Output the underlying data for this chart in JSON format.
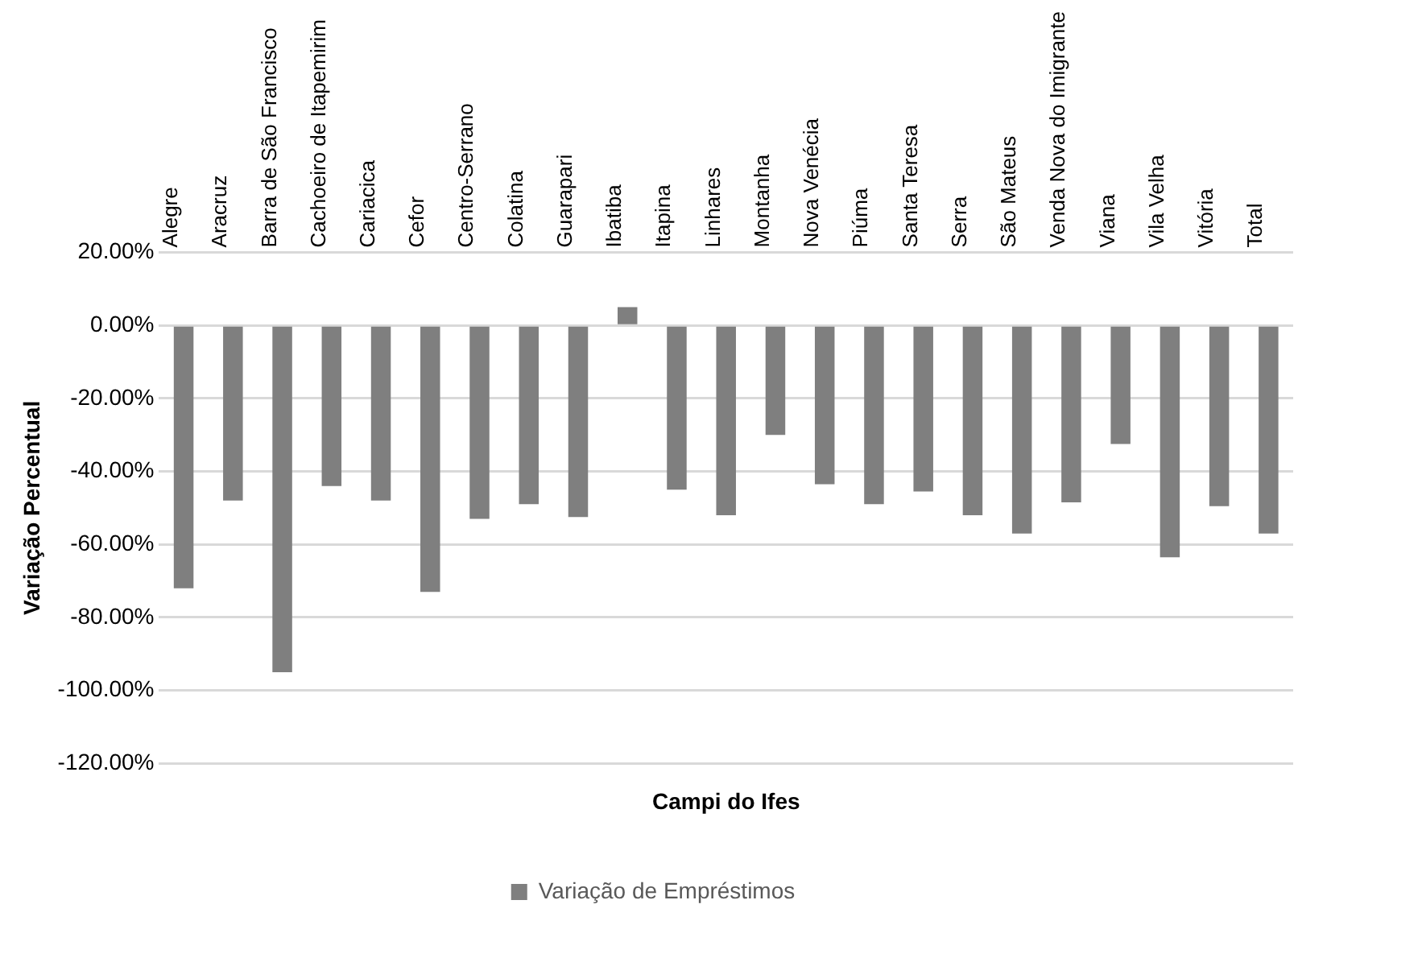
{
  "chart_data": {
    "type": "bar",
    "categories": [
      "Alegre",
      "Aracruz",
      "Barra de São Francisco",
      "Cachoeiro de Itapemirim",
      "Cariacica",
      "Cefor",
      "Centro-Serrano",
      "Colatina",
      "Guarapari",
      "Ibatiba",
      "Itapina",
      "Linhares",
      "Montanha",
      "Nova Venécia",
      "Piúma",
      "Santa Teresa",
      "Serra",
      "São Mateus",
      "Venda Nova do Imigrante",
      "Viana",
      "Vila Velha",
      "Vitória",
      "Total"
    ],
    "series": [
      {
        "name": "Variação de Empréstimos",
        "color": "#7f7f7f",
        "values": [
          -72,
          -48,
          -95,
          -44,
          -48,
          -73,
          -53,
          -49,
          -52.5,
          5,
          -45,
          -52,
          -30,
          -43.5,
          -49,
          -45.5,
          -52,
          -57,
          -48.5,
          -32.5,
          -63.5,
          -49.5,
          -57
        ]
      }
    ],
    "xlabel": "Campi do Ifes",
    "ylabel": "Variação Percentual",
    "ylim": [
      -120,
      20
    ],
    "yticks": [
      {
        "value": -120,
        "label": "-120.00%"
      },
      {
        "value": -100,
        "label": "-100.00%"
      },
      {
        "value": -80,
        "label": "-80.00%"
      },
      {
        "value": -60,
        "label": "-60.00%"
      },
      {
        "value": -40,
        "label": "-40.00%"
      },
      {
        "value": -20,
        "label": "-20.00%"
      },
      {
        "value": 0,
        "label": "0.00%"
      },
      {
        "value": 20,
        "label": "20.00%"
      }
    ],
    "grid": "y",
    "legend": "bottom"
  }
}
